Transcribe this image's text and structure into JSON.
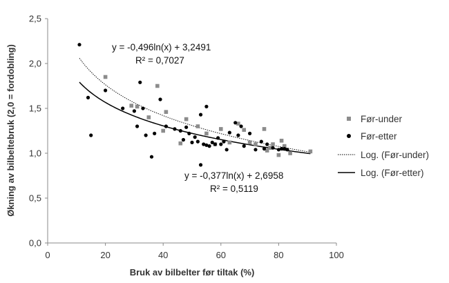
{
  "chart_data": {
    "type": "scatter",
    "title": "",
    "xlabel": "Bruk av bilbelter før tiltak (%)",
    "ylabel": "Økning av bilbeltebruk (2,0 = fordobling)",
    "xlim": [
      0,
      100
    ],
    "ylim": [
      0,
      2.5
    ],
    "x_ticks": [
      0,
      20,
      40,
      60,
      80,
      100
    ],
    "y_ticks": [
      0,
      0.5,
      1.0,
      1.5,
      2.0,
      2.5
    ],
    "x_tick_labels": [
      "0",
      "20",
      "40",
      "60",
      "80",
      "100"
    ],
    "y_tick_labels": [
      "0,0",
      "0,5",
      "1,0",
      "1,5",
      "2,0",
      "2,5"
    ],
    "grid": false,
    "legend_position": "right",
    "series": [
      {
        "name": "Før-under",
        "marker": "square",
        "color": "#8c8c8c",
        "points": [
          [
            20,
            1.85
          ],
          [
            29,
            1.53
          ],
          [
            31,
            1.52
          ],
          [
            35,
            1.4
          ],
          [
            38,
            1.75
          ],
          [
            40,
            1.25
          ],
          [
            41,
            1.46
          ],
          [
            46,
            1.11
          ],
          [
            48,
            1.38
          ],
          [
            52,
            1.3
          ],
          [
            55,
            1.22
          ],
          [
            58,
            1.1
          ],
          [
            60,
            1.27
          ],
          [
            63,
            1.12
          ],
          [
            66,
            1.33
          ],
          [
            68,
            1.26
          ],
          [
            70,
            1.12
          ],
          [
            72,
            1.1
          ],
          [
            75,
            1.27
          ],
          [
            76,
            1.03
          ],
          [
            77,
            1.06
          ],
          [
            78,
            1.1
          ],
          [
            80,
            0.98
          ],
          [
            81,
            1.14
          ],
          [
            82,
            1.08
          ],
          [
            84,
            1.0
          ],
          [
            91,
            1.02
          ]
        ]
      },
      {
        "name": "Før-etter",
        "marker": "circle",
        "color": "#000000",
        "points": [
          [
            11,
            2.21
          ],
          [
            14,
            1.62
          ],
          [
            15,
            1.2
          ],
          [
            20,
            1.7
          ],
          [
            26,
            1.5
          ],
          [
            30,
            1.47
          ],
          [
            31,
            1.3
          ],
          [
            32,
            1.79
          ],
          [
            33,
            1.5
          ],
          [
            34,
            1.2
          ],
          [
            36,
            0.96
          ],
          [
            37,
            1.22
          ],
          [
            39,
            1.6
          ],
          [
            41,
            1.3
          ],
          [
            44,
            1.27
          ],
          [
            46,
            1.25
          ],
          [
            47,
            1.15
          ],
          [
            48,
            1.29
          ],
          [
            49,
            1.22
          ],
          [
            50,
            1.12
          ],
          [
            51,
            1.18
          ],
          [
            52,
            1.13
          ],
          [
            53,
            1.43
          ],
          [
            53,
            0.87
          ],
          [
            54,
            1.1
          ],
          [
            55,
            1.52
          ],
          [
            55,
            1.09
          ],
          [
            56,
            1.08
          ],
          [
            57,
            1.12
          ],
          [
            58,
            1.1
          ],
          [
            59,
            1.17
          ],
          [
            60,
            1.1
          ],
          [
            61,
            1.13
          ],
          [
            62,
            1.04
          ],
          [
            63,
            1.23
          ],
          [
            65,
            1.34
          ],
          [
            66,
            1.2
          ],
          [
            67,
            1.3
          ],
          [
            68,
            1.08
          ],
          [
            70,
            1.22
          ],
          [
            72,
            1.04
          ],
          [
            74,
            1.13
          ],
          [
            75,
            1.05
          ],
          [
            76,
            1.1
          ],
          [
            78,
            1.06
          ],
          [
            80,
            1.04
          ],
          [
            81,
            1.05
          ],
          [
            82,
            1.05
          ],
          [
            83,
            1.04
          ]
        ]
      }
    ],
    "trendlines": [
      {
        "name": "Log. (Før-under)",
        "type": "log",
        "a": -0.496,
        "b": 3.2491,
        "x_range": [
          11,
          91
        ],
        "style": "dotted",
        "equation": "y = -0,496ln(x) + 3,2491",
        "r2": "R² = 0,7027"
      },
      {
        "name": "Log. (Før-etter)",
        "type": "log",
        "a": -0.377,
        "b": 2.6958,
        "x_range": [
          11,
          91
        ],
        "style": "solid",
        "equation": "y = -0,377ln(x) + 2,6958",
        "r2": "R² = 0,5119"
      }
    ]
  }
}
